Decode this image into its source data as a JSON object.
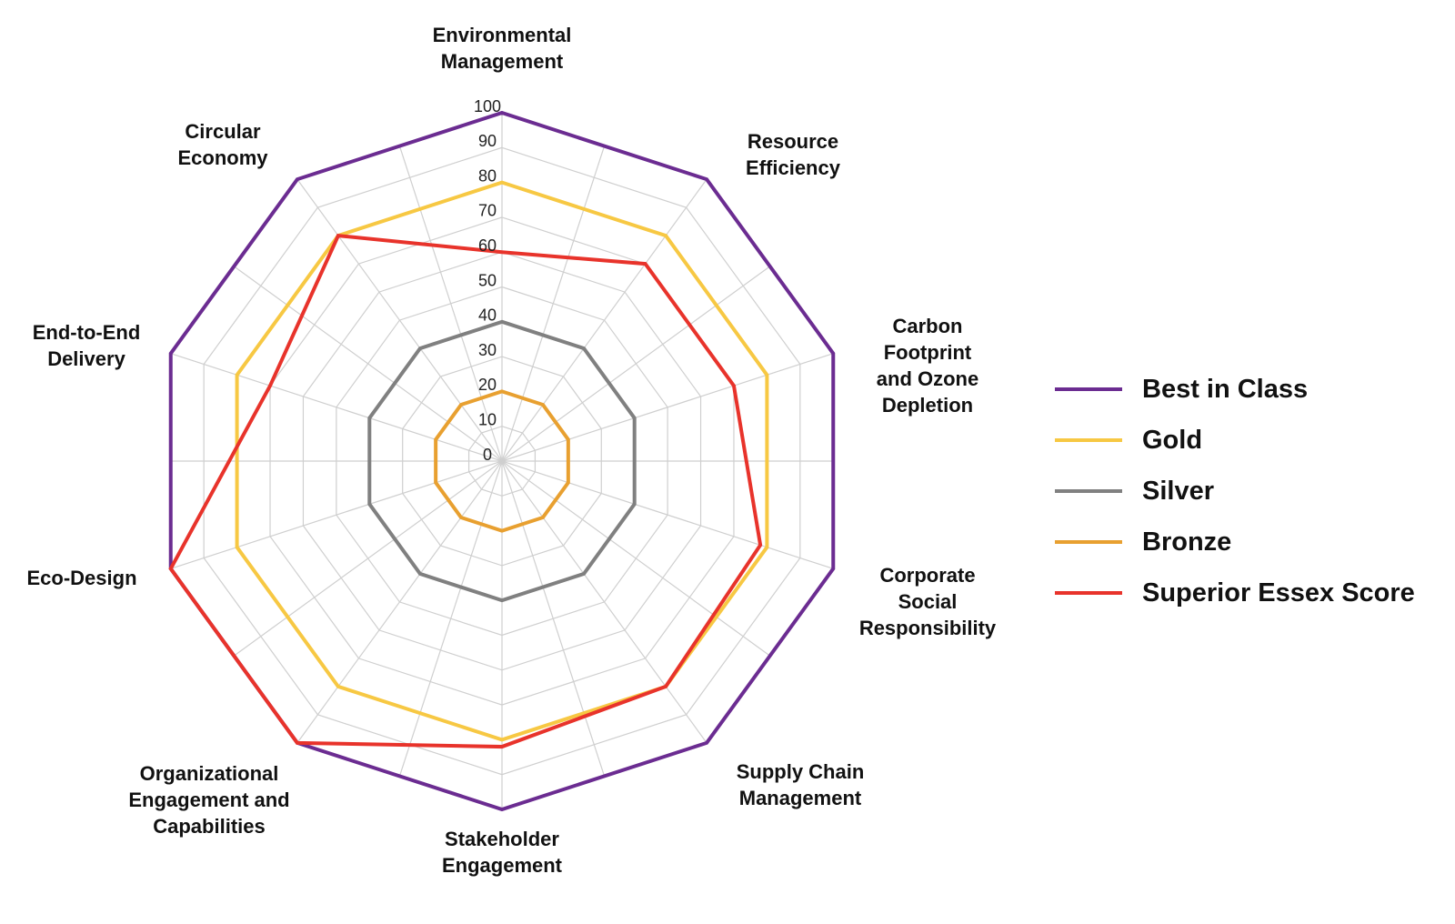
{
  "chart_data": {
    "type": "radar",
    "title": "",
    "axes": [
      "Environmental Management",
      "Resource Efficiency",
      "Carbon Footprint and Ozone Depletion",
      "Corporate Social Responsibility",
      "Supply Chain Management",
      "Stakeholder Engagement",
      "Organizational Engagement and Capabilities",
      "Eco-Design",
      "End-to-End Delivery",
      "Circular Economy"
    ],
    "axis_label_lines": [
      [
        "Environmental",
        "Management"
      ],
      [
        "Resource",
        "Efficiency"
      ],
      [
        "Carbon",
        "Footprint",
        "and Ozone",
        "Depletion"
      ],
      [
        "Corporate",
        "Social",
        "Responsibility"
      ],
      [
        "Supply Chain",
        "Management"
      ],
      [
        "Stakeholder",
        "Engagement"
      ],
      [
        "Organizational",
        "Engagement and",
        "Capabilities"
      ],
      [
        "Eco-Design"
      ],
      [
        "End-to-End",
        "Delivery"
      ],
      [
        "Circular",
        "Economy"
      ]
    ],
    "rlim": [
      0,
      100
    ],
    "ticks": [
      0,
      10,
      20,
      30,
      40,
      50,
      60,
      70,
      80,
      90,
      100
    ],
    "grid": true,
    "legend_position": "right",
    "series": [
      {
        "name": "Best in Class",
        "color": "#6b2c91",
        "values": [
          100,
          100,
          100,
          100,
          100,
          100,
          100,
          100,
          100,
          100
        ]
      },
      {
        "name": "Gold",
        "color": "#f7c843",
        "values": [
          80,
          80,
          80,
          80,
          80,
          80,
          80,
          80,
          80,
          80
        ]
      },
      {
        "name": "Silver",
        "color": "#808080",
        "values": [
          40,
          40,
          40,
          40,
          40,
          40,
          40,
          40,
          40,
          40
        ]
      },
      {
        "name": "Bronze",
        "color": "#e8a030",
        "values": [
          20,
          20,
          20,
          20,
          20,
          20,
          20,
          20,
          20,
          20
        ]
      },
      {
        "name": "Superior Essex Score",
        "color": "#e8332b",
        "values": [
          60,
          70,
          70,
          78,
          80,
          82,
          100,
          100,
          70,
          80
        ]
      }
    ]
  }
}
